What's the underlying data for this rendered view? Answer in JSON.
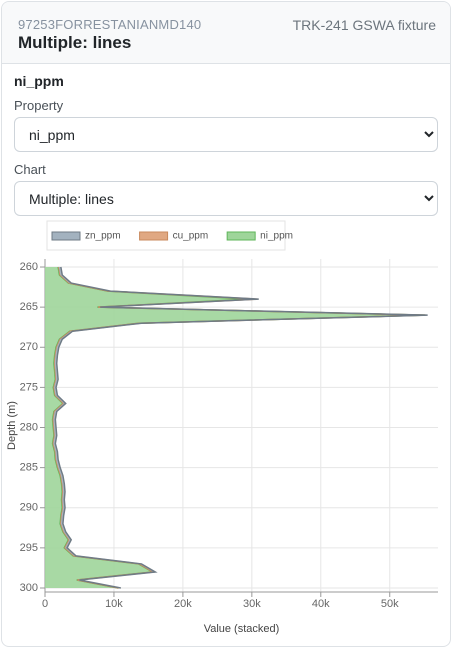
{
  "header": {
    "subtitle": "97253FORRESTANIANMD140",
    "title": "Multiple: lines",
    "badge": "TRK-241 GSWA fixture"
  },
  "section_title": "ni_ppm",
  "controls": [
    {
      "label": "Property",
      "value": "ni_ppm"
    },
    {
      "label": "Chart",
      "value": "Multiple: lines"
    }
  ],
  "chart_data": {
    "type": "area",
    "stacked": true,
    "orientation": "horizontal",
    "y_inverted": true,
    "grid": true,
    "legend": "top-left",
    "xlabel": "Value (stacked)",
    "ylabel": "Depth (m)",
    "y": [
      260,
      261,
      262,
      263,
      264,
      265,
      266,
      267,
      268,
      269,
      270,
      271,
      272,
      273,
      274,
      275,
      276,
      277,
      278,
      279,
      280,
      281,
      282,
      283,
      284,
      285,
      286,
      287,
      288,
      289,
      290,
      291,
      292,
      293,
      294,
      295,
      296,
      297,
      298,
      299,
      300
    ],
    "series": [
      {
        "name": "zn_ppm",
        "color": "#a3b2bf",
        "stroke": "#6f7b86",
        "values": [
          300,
          300,
          300,
          300,
          300,
          300,
          300,
          300,
          300,
          300,
          300,
          300,
          300,
          300,
          300,
          300,
          300,
          300,
          300,
          300,
          300,
          300,
          300,
          300,
          300,
          300,
          300,
          300,
          300,
          300,
          300,
          300,
          300,
          300,
          300,
          300,
          300,
          300,
          300,
          300,
          300
        ]
      },
      {
        "name": "cu_ppm",
        "color": "#e0a882",
        "stroke": "#c98a5e",
        "values": [
          100,
          100,
          100,
          100,
          1200,
          100,
          100,
          100,
          100,
          100,
          100,
          100,
          100,
          100,
          100,
          100,
          100,
          100,
          100,
          100,
          100,
          100,
          100,
          100,
          100,
          100,
          100,
          100,
          100,
          100,
          100,
          100,
          100,
          100,
          100,
          100,
          100,
          100,
          100,
          100,
          100
        ]
      },
      {
        "name": "ni_ppm",
        "color": "#9ed59a",
        "stroke": "#5fb65a",
        "values": [
          1900,
          2100,
          3400,
          9100,
          29500,
          7600,
          55100,
          13600,
          3600,
          2100,
          1600,
          1400,
          1300,
          1400,
          1500,
          1200,
          1400,
          2600,
          1300,
          1100,
          1200,
          1300,
          1100,
          1400,
          1500,
          1800,
          2200,
          2400,
          2500,
          2400,
          2500,
          2300,
          2200,
          2600,
          3400,
          2800,
          4100,
          13600,
          15600,
          4600,
          10600
        ]
      }
    ],
    "stack_order": [
      "ni_ppm",
      "cu_ppm",
      "zn_ppm"
    ],
    "xlim": [
      0,
      57000
    ],
    "ylim": [
      259,
      300.5
    ],
    "xticks": [
      {
        "value": 0,
        "label": "0"
      },
      {
        "value": 10000,
        "label": "10k"
      },
      {
        "value": 20000,
        "label": "20k"
      },
      {
        "value": 30000,
        "label": "30k"
      },
      {
        "value": 40000,
        "label": "40k"
      },
      {
        "value": 50000,
        "label": "50k"
      }
    ],
    "yticks": [
      260,
      265,
      270,
      275,
      280,
      285,
      290,
      295,
      300
    ]
  }
}
